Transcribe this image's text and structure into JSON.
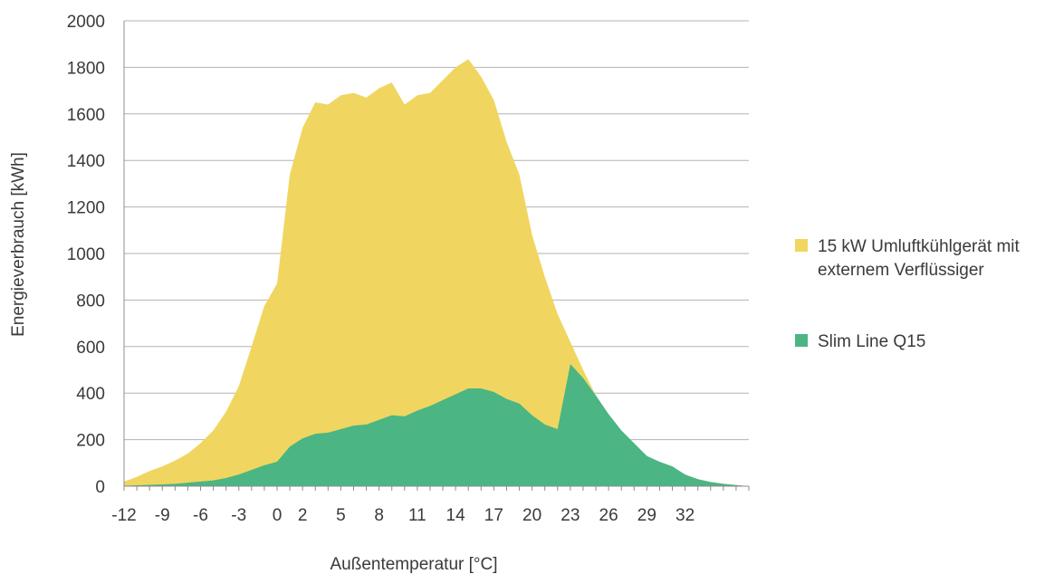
{
  "chart_data": {
    "type": "area",
    "xlabel": "Außentemperatur [°C]",
    "ylabel": "Energieverbrauch [kWh]",
    "ylim": [
      0,
      2000
    ],
    "xlim": [
      -12,
      37
    ],
    "yticks": [
      0,
      200,
      400,
      600,
      800,
      1000,
      1200,
      1400,
      1600,
      1800,
      2000
    ],
    "xticks": [
      -12,
      -9,
      -6,
      -3,
      0,
      2,
      5,
      8,
      11,
      14,
      17,
      20,
      23,
      26,
      29,
      32
    ],
    "grid": true,
    "legend_position": "right",
    "series": [
      {
        "name": "15 kW Umluftkühlgerät mit externem Verflüssiger",
        "color": "#f0d660",
        "x": [
          -12,
          -11,
          -10,
          -9,
          -8,
          -7,
          -6,
          -5,
          -4,
          -3,
          -2,
          -1,
          0,
          1,
          2,
          3,
          4,
          5,
          6,
          7,
          8,
          9,
          10,
          11,
          12,
          13,
          14,
          15,
          16,
          17,
          18,
          19,
          20,
          21,
          22,
          23,
          24,
          25,
          26,
          27,
          28,
          29,
          30,
          31,
          32,
          33,
          34,
          35,
          36,
          37
        ],
        "values": [
          20,
          40,
          65,
          85,
          110,
          140,
          185,
          240,
          320,
          430,
          600,
          775,
          870,
          1340,
          1540,
          1650,
          1640,
          1680,
          1690,
          1670,
          1710,
          1735,
          1640,
          1680,
          1690,
          1745,
          1800,
          1835,
          1760,
          1660,
          1480,
          1340,
          1080,
          900,
          740,
          620,
          500,
          390,
          300,
          230,
          180,
          130,
          100,
          80,
          50,
          30,
          18,
          10,
          5,
          0
        ],
        "line_values": [
          20,
          40,
          65,
          85,
          110,
          140,
          185,
          240,
          320,
          430,
          600,
          775,
          870,
          1340,
          1540,
          1650,
          1640,
          1680,
          1690,
          1670,
          1710,
          1735,
          1640,
          1680,
          1690,
          1745,
          1800,
          1835,
          1760,
          1660,
          1480,
          1340,
          1080,
          900,
          740,
          620,
          520,
          440,
          360,
          280,
          200,
          130,
          100,
          80,
          50,
          30,
          18,
          10,
          5,
          0
        ]
      },
      {
        "name": "Slim Line Q15",
        "color": "#4bb584",
        "x": [
          -12,
          -11,
          -10,
          -9,
          -8,
          -7,
          -6,
          -5,
          -4,
          -3,
          -2,
          -1,
          0,
          1,
          2,
          3,
          4,
          5,
          6,
          7,
          8,
          9,
          10,
          11,
          12,
          13,
          14,
          15,
          16,
          17,
          18,
          19,
          20,
          21,
          22,
          23,
          24,
          25,
          26,
          27,
          28,
          29,
          30,
          31,
          32,
          33,
          34,
          35,
          36,
          37
        ],
        "values": [
          2,
          4,
          6,
          8,
          10,
          15,
          20,
          25,
          35,
          50,
          70,
          90,
          105,
          170,
          205,
          225,
          230,
          245,
          260,
          265,
          285,
          305,
          300,
          325,
          345,
          370,
          395,
          420,
          420,
          405,
          375,
          355,
          305,
          265,
          245,
          525,
          465,
          390,
          310,
          240,
          185,
          130,
          105,
          85,
          50,
          30,
          18,
          10,
          5,
          0
        ]
      }
    ]
  }
}
